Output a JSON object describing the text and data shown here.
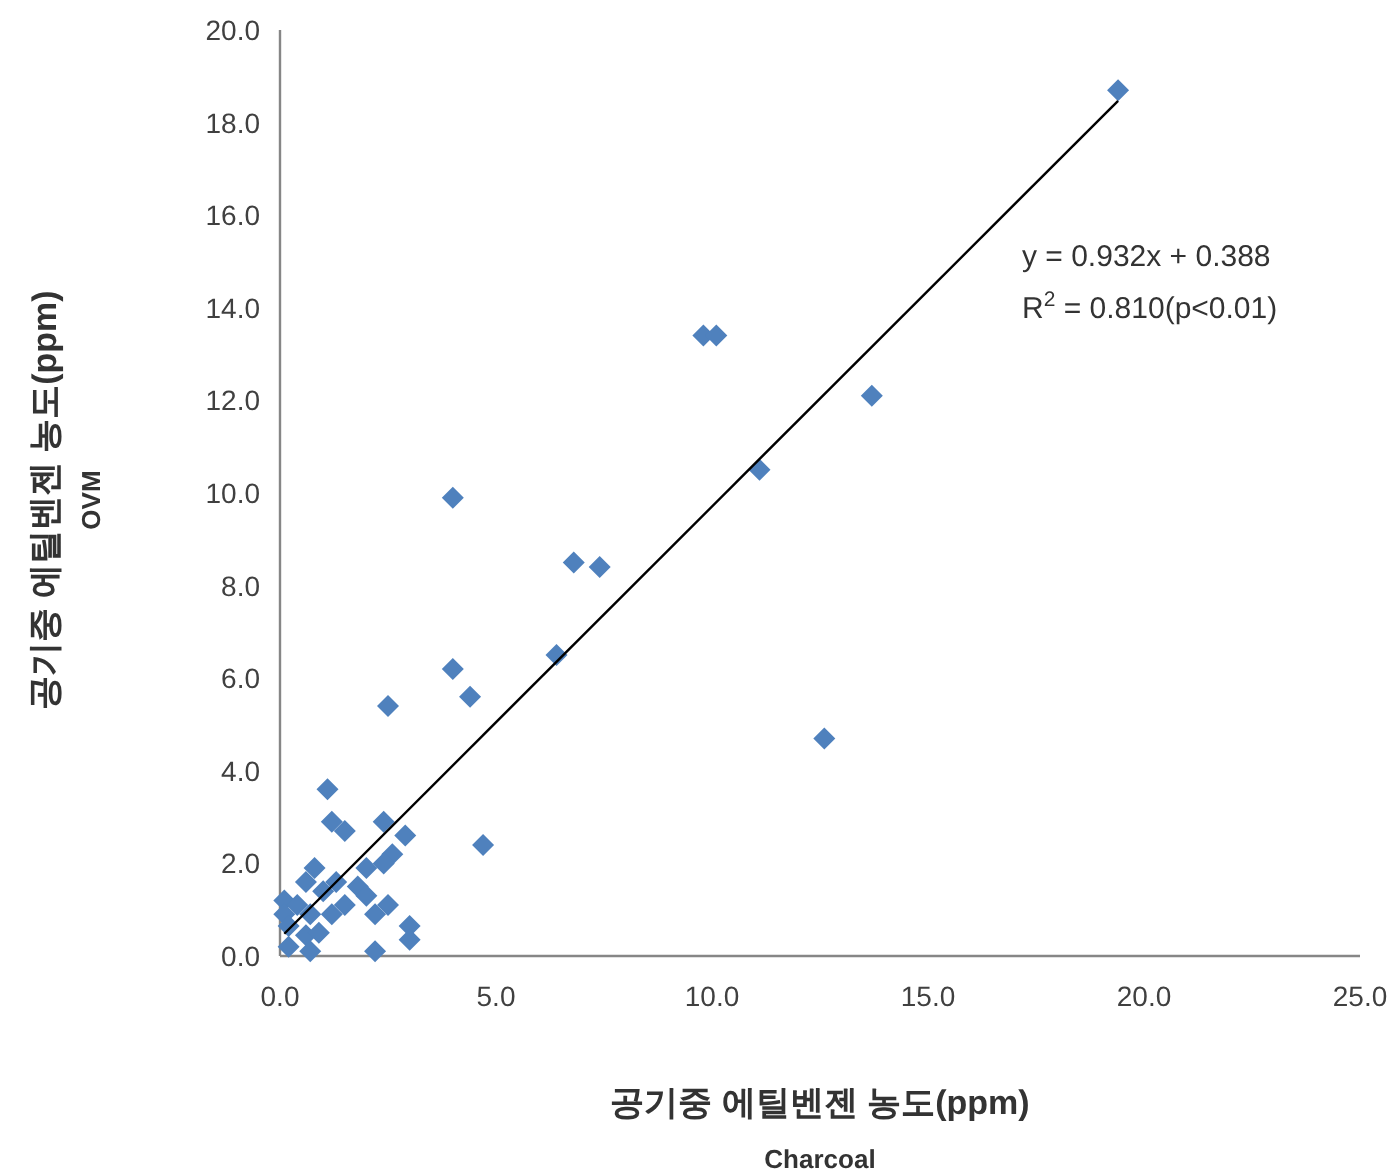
{
  "chart_data": {
    "type": "scatter",
    "xlabel": "공기중 에틸벤젠 농도(ppm)\nCharcoal",
    "ylabel": "공기중 에틸벤젠 농도(ppm)\nOVM",
    "xlim": [
      0,
      25
    ],
    "ylim": [
      0,
      20
    ],
    "xticks": [
      {
        "value": 0,
        "label": "0.0"
      },
      {
        "value": 5,
        "label": "5.0"
      },
      {
        "value": 10,
        "label": "10.0"
      },
      {
        "value": 15,
        "label": "15.0"
      },
      {
        "value": 20,
        "label": "20.0"
      },
      {
        "value": 25,
        "label": "25.0"
      }
    ],
    "yticks": [
      {
        "value": 0,
        "label": "0.0"
      },
      {
        "value": 2,
        "label": "2.0"
      },
      {
        "value": 4,
        "label": "4.0"
      },
      {
        "value": 6,
        "label": "6.0"
      },
      {
        "value": 8,
        "label": "8.0"
      },
      {
        "value": 10,
        "label": "10.0"
      },
      {
        "value": 12,
        "label": "12.0"
      },
      {
        "value": 14,
        "label": "14.0"
      },
      {
        "value": 16,
        "label": "16.0"
      },
      {
        "value": 18,
        "label": "18.0"
      },
      {
        "value": 20,
        "label": "20.0"
      }
    ],
    "grid": false,
    "marker": "diamond",
    "annotations": [
      "y = 0.932x + 0.388",
      "R$^{2}$ = 0.810(p<0.01)"
    ],
    "series": [
      {
        "type": "scatter",
        "color": "#4f81bd",
        "x": [
          19.4,
          9.8,
          10.1,
          13.7,
          11.1,
          4.0,
          6.8,
          7.4,
          4.0,
          4.4,
          2.5,
          6.4,
          12.6,
          4.7,
          1.1,
          1.2,
          1.5,
          2.4,
          2.9,
          2.6,
          2.4,
          2.0,
          1.8,
          2.0,
          2.5,
          2.2,
          3.0,
          3.0,
          2.2,
          0.8,
          0.6,
          1.0,
          0.1,
          0.1,
          0.4,
          0.7,
          1.2,
          0.2,
          0.6,
          0.9,
          0.2,
          0.7,
          1.5,
          1.3
        ],
        "values": [
          18.7,
          13.4,
          13.4,
          12.1,
          10.5,
          9.9,
          8.5,
          8.4,
          6.2,
          5.6,
          5.4,
          6.5,
          4.7,
          2.4,
          3.6,
          2.9,
          2.7,
          2.9,
          2.6,
          2.2,
          2.0,
          1.9,
          1.5,
          1.3,
          1.1,
          0.9,
          0.65,
          0.35,
          0.1,
          1.9,
          1.6,
          1.4,
          1.2,
          0.9,
          1.1,
          0.9,
          0.9,
          0.65,
          0.45,
          0.5,
          0.2,
          0.1,
          1.1,
          1.6
        ]
      },
      {
        "type": "line",
        "color": "#000000",
        "line_style": "solid",
        "marker": "none",
        "x": [
          0.1,
          19.4
        ],
        "values": [
          0.48,
          18.47
        ]
      }
    ]
  }
}
